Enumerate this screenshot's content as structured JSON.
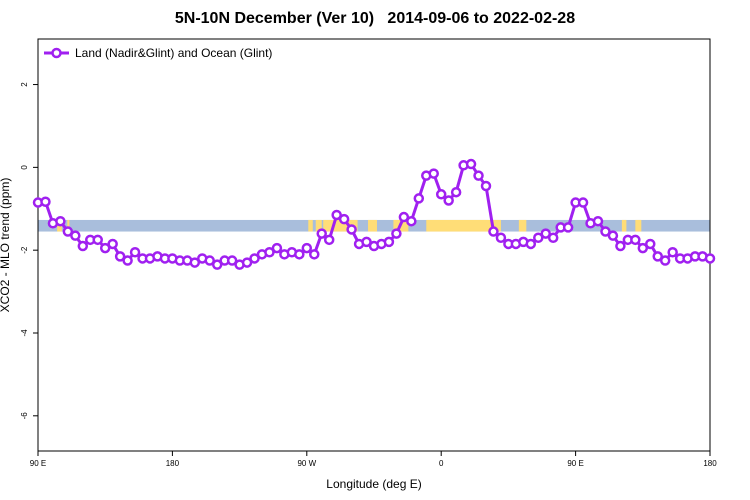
{
  "title": "5N-10N December (Ver 10)   2014-09-06 to 2022-02-28",
  "chart_data": {
    "type": "line",
    "xlabel": "Longitude (deg E)",
    "ylabel": "XCO2 - MLO trend (ppm)",
    "x_ticks": [
      {
        "value": 90,
        "label": "90 E"
      },
      {
        "value": 180,
        "label": "180"
      },
      {
        "value": 270,
        "label": "90 W"
      },
      {
        "value": 360,
        "label": "0"
      },
      {
        "value": 450,
        "label": "90 E"
      },
      {
        "value": 540,
        "label": "180"
      }
    ],
    "y_ticks": [
      {
        "value": 2,
        "label": "2"
      },
      {
        "value": 0,
        "label": "0"
      },
      {
        "value": -2,
        "label": "-2"
      },
      {
        "value": -4,
        "label": "-4"
      },
      {
        "value": -6,
        "label": "-6"
      }
    ],
    "xlim": [
      90,
      540
    ],
    "ylim": [
      -6.85,
      3.1
    ],
    "grid": false,
    "legend_position": "top-left",
    "series": [
      {
        "name": "Land (Nadir&Glint) and Ocean (Glint)",
        "color": "#a020f0",
        "x": [
          90,
          95,
          100,
          105,
          110,
          115,
          120,
          125,
          130,
          135,
          140,
          145,
          150,
          155,
          160,
          165,
          170,
          175,
          180,
          185,
          190,
          195,
          200,
          205,
          210,
          215,
          220,
          225,
          230,
          235,
          240,
          245,
          250,
          255,
          260,
          265,
          270,
          275,
          280,
          285,
          290,
          295,
          300,
          305,
          310,
          315,
          320,
          325,
          330,
          335,
          340,
          345,
          350,
          355,
          360,
          365,
          370,
          375,
          380,
          385,
          390,
          395,
          400,
          405,
          410,
          415,
          420,
          425,
          430,
          435,
          440,
          445,
          450,
          455,
          460,
          465,
          470,
          475,
          480,
          485,
          490,
          495,
          500,
          505,
          510,
          515,
          520,
          525,
          530,
          535,
          540
        ],
        "y": [
          -0.85,
          -0.83,
          -1.35,
          -1.3,
          -1.55,
          -1.65,
          -1.9,
          -1.75,
          -1.75,
          -1.95,
          -1.85,
          -2.15,
          -2.25,
          -2.05,
          -2.2,
          -2.2,
          -2.15,
          -2.2,
          -2.2,
          -2.25,
          -2.25,
          -2.3,
          -2.2,
          -2.25,
          -2.35,
          -2.25,
          -2.25,
          -2.35,
          -2.3,
          -2.2,
          -2.1,
          -2.05,
          -1.95,
          -2.1,
          -2.05,
          -2.1,
          -1.95,
          -2.1,
          -1.6,
          -1.75,
          -1.15,
          -1.25,
          -1.5,
          -1.85,
          -1.8,
          -1.9,
          -1.85,
          -1.8,
          -1.6,
          -1.2,
          -1.3,
          -0.75,
          -0.2,
          -0.15,
          -0.65,
          -0.8,
          -0.6,
          0.05,
          0.08,
          -0.2,
          -0.45,
          -1.55,
          -1.7,
          -1.85,
          -1.85,
          -1.8,
          -1.85,
          -1.7,
          -1.6,
          -1.7,
          -1.45,
          -1.45,
          -0.85,
          -0.85,
          -1.35,
          -1.3,
          -1.55,
          -1.65,
          -1.9,
          -1.75,
          -1.75,
          -1.95,
          -1.85,
          -2.15,
          -2.25,
          -2.05,
          -2.2,
          -2.2,
          -2.15,
          -2.15,
          -2.2
        ]
      }
    ],
    "background_bands": [
      {
        "name": "ocean",
        "color": "#a9bedc"
      },
      {
        "name": "land",
        "color": "#ffdd77"
      }
    ]
  }
}
